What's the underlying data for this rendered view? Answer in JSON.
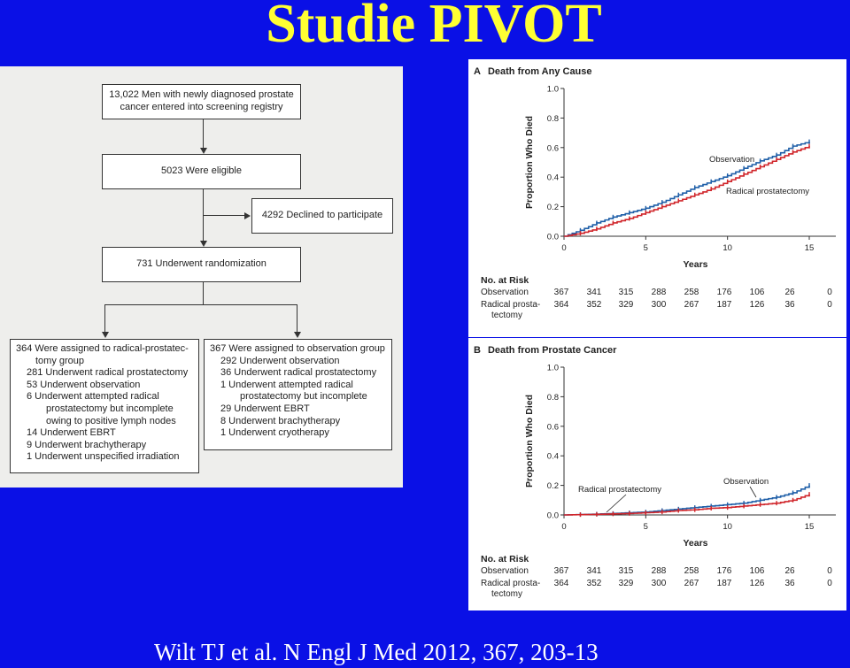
{
  "slide": {
    "title": "Studie PIVOT",
    "citation": "Wilt TJ et al. N Engl J Med 2012, 367, 203-13"
  },
  "flowchart": {
    "top": [
      "13,022 Men with newly diagnosed prostate",
      "cancer entered into screening registry"
    ],
    "eligible": "5023 Were eligible",
    "declined": "4292 Declined to participate",
    "randomized": "731 Underwent randomization",
    "left_arm": [
      "364 Were assigned to radical-prostatec-",
      "tomy group",
      "281 Underwent radical prostatectomy",
      "53 Underwent observation",
      "6 Underwent attempted radical",
      "prostatectomy but incomplete",
      "owing to positive lymph nodes",
      "14 Underwent EBRT",
      "9 Underwent brachytherapy",
      "1 Underwent unspecified irradiation"
    ],
    "right_arm": [
      "367 Were assigned to observation group",
      "292 Underwent observation",
      "36 Underwent radical prostatectomy",
      "1 Underwent attempted radical",
      "prostatectomy but incomplete",
      "29 Underwent EBRT",
      "8 Underwent brachytherapy",
      "1 Underwent cryotherapy"
    ]
  },
  "chart_data": [
    {
      "type": "line",
      "panel_label": "A",
      "title": "Death from Any Cause",
      "xlabel": "Years",
      "ylabel": "Proportion Who Died",
      "xlim": [
        0,
        15
      ],
      "ylim": [
        0,
        1.0
      ],
      "xticks": [
        "0",
        "5",
        "10",
        "15"
      ],
      "yticks": [
        "0.0",
        "0.2",
        "0.4",
        "0.6",
        "0.8",
        "1.0"
      ],
      "annotations": [
        "Observation",
        "Radical prostatectomy"
      ],
      "series": [
        {
          "name": "Observation",
          "color": "#1f5fa8",
          "x": [
            0,
            1,
            2,
            3,
            4,
            5,
            6,
            7,
            8,
            9,
            10,
            11,
            12,
            13,
            14,
            15
          ],
          "y": [
            0,
            0.04,
            0.09,
            0.13,
            0.16,
            0.19,
            0.23,
            0.28,
            0.33,
            0.37,
            0.41,
            0.46,
            0.51,
            0.55,
            0.61,
            0.64
          ]
        },
        {
          "name": "Radical prostatectomy",
          "color": "#d0262b",
          "x": [
            0,
            1,
            2,
            3,
            4,
            5,
            6,
            7,
            8,
            9,
            10,
            11,
            12,
            13,
            14,
            15
          ],
          "y": [
            0,
            0.02,
            0.05,
            0.09,
            0.12,
            0.16,
            0.2,
            0.24,
            0.28,
            0.32,
            0.37,
            0.42,
            0.47,
            0.52,
            0.57,
            0.61
          ]
        }
      ]
    },
    {
      "type": "line",
      "panel_label": "B",
      "title": "Death from Prostate Cancer",
      "xlabel": "Years",
      "ylabel": "Proportion Who Died",
      "xlim": [
        0,
        15
      ],
      "ylim": [
        0,
        1.0
      ],
      "xticks": [
        "0",
        "5",
        "10",
        "15"
      ],
      "yticks": [
        "0.0",
        "0.2",
        "0.4",
        "0.6",
        "0.8",
        "1.0"
      ],
      "annotations": [
        "Radical prostatectomy",
        "Observation"
      ],
      "series": [
        {
          "name": "Observation",
          "color": "#1f5fa8",
          "x": [
            0,
            1,
            2,
            3,
            4,
            5,
            6,
            7,
            8,
            9,
            10,
            11,
            12,
            13,
            14,
            15
          ],
          "y": [
            0,
            0.003,
            0.006,
            0.01,
            0.015,
            0.02,
            0.03,
            0.04,
            0.05,
            0.06,
            0.07,
            0.08,
            0.1,
            0.12,
            0.15,
            0.2
          ]
        },
        {
          "name": "Radical prostatectomy",
          "color": "#d0262b",
          "x": [
            0,
            1,
            2,
            3,
            4,
            5,
            6,
            7,
            8,
            9,
            10,
            11,
            12,
            13,
            14,
            15
          ],
          "y": [
            0,
            0.002,
            0.004,
            0.007,
            0.01,
            0.015,
            0.02,
            0.03,
            0.035,
            0.045,
            0.05,
            0.06,
            0.07,
            0.08,
            0.1,
            0.14
          ]
        }
      ]
    }
  ],
  "risk_tables": [
    {
      "heading": "No. at Risk",
      "rows": [
        {
          "label": [
            "Observation"
          ],
          "values": [
            "367",
            "341",
            "315",
            "288",
            "258",
            "176",
            "106",
            "26",
            "0"
          ]
        },
        {
          "label": [
            "Radical prosta-",
            "tectomy"
          ],
          "values": [
            "364",
            "352",
            "329",
            "300",
            "267",
            "187",
            "126",
            "36",
            "0"
          ]
        }
      ]
    },
    {
      "heading": "No. at Risk",
      "rows": [
        {
          "label": [
            "Observation"
          ],
          "values": [
            "367",
            "341",
            "315",
            "288",
            "258",
            "176",
            "106",
            "26",
            "0"
          ]
        },
        {
          "label": [
            "Radical prosta-",
            "tectomy"
          ],
          "values": [
            "364",
            "352",
            "329",
            "300",
            "267",
            "187",
            "126",
            "36",
            "0"
          ]
        }
      ]
    }
  ]
}
